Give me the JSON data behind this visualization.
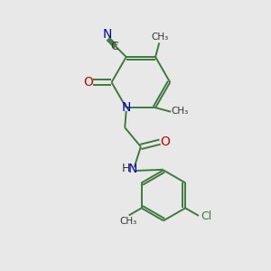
{
  "background_color": "#e8e8e8",
  "bond_color": "#3d7a3d",
  "N_color": "#0000cc",
  "O_color": "#cc0000",
  "Cl_color": "#3d7a3d",
  "C_color": "#333333",
  "figsize": [
    3.0,
    3.0
  ],
  "dpi": 100,
  "xlim": [
    0,
    10
  ],
  "ylim": [
    0,
    10
  ]
}
